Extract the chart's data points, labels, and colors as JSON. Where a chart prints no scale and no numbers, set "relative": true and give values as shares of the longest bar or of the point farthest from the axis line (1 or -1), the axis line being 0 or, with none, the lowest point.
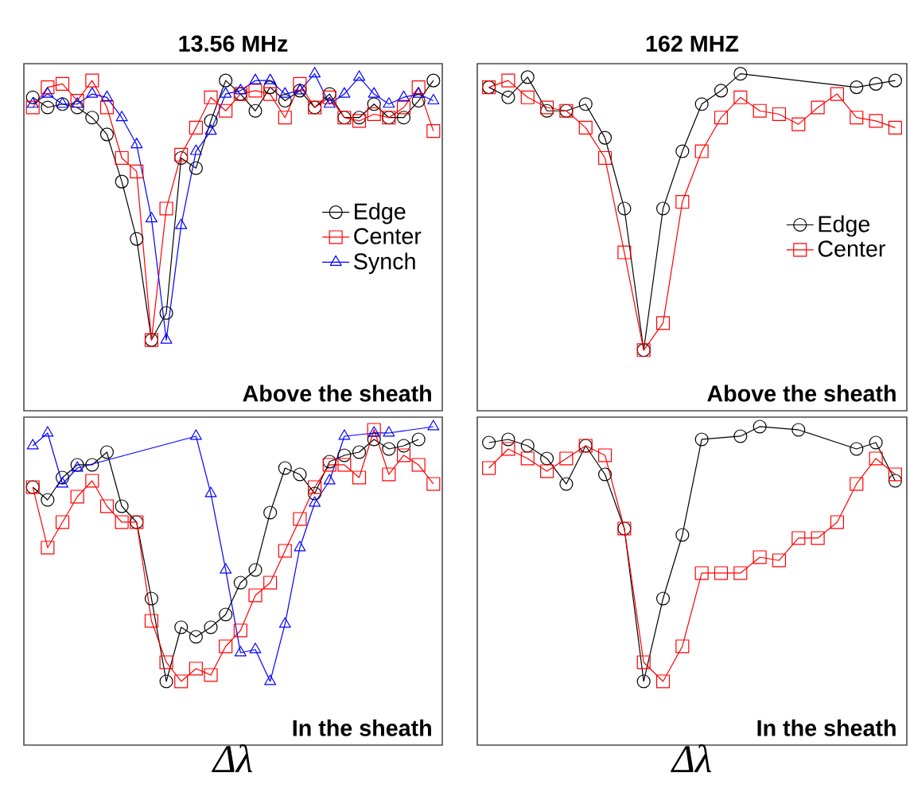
{
  "chart_data": [
    {
      "type": "line",
      "title": "13.56 MHz",
      "relative": true,
      "tick_labels": false,
      "legend": "right",
      "annotations": [
        "Above the sheath"
      ],
      "categories": [
        null,
        null,
        null,
        null,
        null,
        null,
        null,
        null,
        null,
        null,
        null,
        null,
        null,
        null,
        null,
        null,
        null,
        null,
        null,
        null,
        null,
        null,
        null,
        null,
        null,
        null,
        null,
        null
      ],
      "series": [
        {
          "name": "Edge",
          "color": "#000000",
          "marker": "circle",
          "values": [
            0.93,
            0.9,
            0.91,
            0.9,
            0.87,
            0.82,
            0.68,
            0.51,
            0.21,
            0.29,
            0.75,
            0.72,
            0.86,
            0.98,
            0.94,
            0.89,
            0.96,
            0.92,
            0.95,
            0.9,
            0.94,
            0.87,
            0.87,
            0.91,
            0.87,
            0.87,
            0.92,
            0.98
          ]
        },
        {
          "name": "Center",
          "color": "#ff0000",
          "marker": "square",
          "values": [
            0.9,
            0.96,
            0.97,
            0.92,
            0.98,
            0.9,
            0.75,
            0.71,
            0.21,
            0.6,
            0.76,
            0.84,
            0.93,
            0.89,
            0.94,
            0.95,
            0.94,
            0.87,
            0.97,
            0.9,
            0.93,
            0.87,
            0.86,
            0.88,
            0.87,
            0.9,
            0.96,
            0.83
          ]
        },
        {
          "name": "Synch",
          "color": "#0000ff",
          "marker": "triangle",
          "values": [
            0.91,
            0.94,
            0.91,
            0.91,
            0.94,
            0.93,
            0.87,
            0.79,
            0.57,
            0.21,
            0.55,
            0.77,
            0.83,
            0.94,
            0.95,
            0.98,
            0.98,
            0.94,
            0.95,
            1.0,
            0.91,
            0.94,
            0.99,
            0.94,
            0.91,
            0.93,
            0.94,
            0.92
          ]
        }
      ]
    },
    {
      "type": "line",
      "title": "162 MHZ",
      "relative": true,
      "tick_labels": false,
      "legend": "right",
      "annotations": [
        "Above the sheath"
      ],
      "categories": [
        null,
        null,
        null,
        null,
        null,
        null,
        null,
        null,
        null,
        null,
        null,
        null,
        null,
        null,
        null,
        null,
        null,
        null,
        null,
        null,
        null,
        null
      ],
      "series": [
        {
          "name": "Edge",
          "color": "#000000",
          "marker": "circle",
          "values": [
            0.96,
            0.93,
            0.99,
            0.89,
            0.89,
            0.91,
            0.81,
            0.6,
            0.18,
            0.6,
            0.77,
            0.91,
            0.95,
            1.0,
            null,
            null,
            null,
            null,
            null,
            0.96,
            0.97,
            0.98
          ]
        },
        {
          "name": "Center",
          "color": "#ff0000",
          "marker": "square",
          "values": [
            0.96,
            0.98,
            0.93,
            0.9,
            0.89,
            0.84,
            0.75,
            0.47,
            0.18,
            0.26,
            0.62,
            0.77,
            0.87,
            0.93,
            0.89,
            0.88,
            0.85,
            0.9,
            0.94,
            0.87,
            0.86,
            0.84
          ]
        }
      ]
    },
    {
      "type": "line",
      "xlabel": "Δλ",
      "relative": true,
      "tick_labels": false,
      "annotations": [
        "In the sheath"
      ],
      "categories": [
        null,
        null,
        null,
        null,
        null,
        null,
        null,
        null,
        null,
        null,
        null,
        null,
        null,
        null,
        null,
        null,
        null,
        null,
        null,
        null,
        null,
        null,
        null,
        null,
        null,
        null,
        null,
        null
      ],
      "series": [
        {
          "color": "#000000",
          "marker": "circle",
          "values": [
            0.81,
            0.77,
            0.84,
            0.88,
            0.88,
            0.92,
            0.75,
            0.7,
            0.46,
            0.2,
            0.37,
            0.34,
            0.37,
            0.41,
            0.51,
            0.55,
            0.73,
            0.87,
            0.85,
            0.79,
            0.89,
            0.91,
            0.92,
            0.96,
            0.93,
            0.94,
            0.96,
            null
          ]
        },
        {
          "color": "#ff0000",
          "marker": "square",
          "values": [
            0.81,
            0.62,
            0.7,
            0.78,
            0.83,
            0.75,
            0.7,
            0.7,
            0.39,
            0.26,
            0.2,
            0.24,
            0.22,
            0.31,
            0.36,
            0.47,
            0.51,
            0.61,
            0.71,
            0.81,
            0.88,
            0.88,
            0.84,
            0.99,
            0.85,
            0.91,
            0.88,
            0.82
          ]
        },
        {
          "color": "#0000ff",
          "marker": "triangle",
          "values": [
            0.94,
            0.98,
            0.82,
            0.87,
            null,
            null,
            null,
            null,
            null,
            null,
            null,
            0.97,
            0.79,
            0.55,
            0.29,
            0.3,
            0.2,
            0.38,
            0.62,
            0.76,
            0.83,
            0.97,
            null,
            0.98,
            0.98,
            null,
            null,
            1.0
          ]
        }
      ]
    },
    {
      "type": "line",
      "xlabel": "Δλ",
      "relative": true,
      "tick_labels": false,
      "annotations": [
        "In the sheath"
      ],
      "categories": [
        null,
        null,
        null,
        null,
        null,
        null,
        null,
        null,
        null,
        null,
        null,
        null,
        null,
        null,
        null,
        null,
        null,
        null,
        null,
        null,
        null,
        null
      ],
      "series": [
        {
          "color": "#000000",
          "marker": "circle",
          "values": [
            0.95,
            0.96,
            0.94,
            0.9,
            0.82,
            0.94,
            0.85,
            0.68,
            0.2,
            0.46,
            0.66,
            0.96,
            null,
            0.97,
            1.0,
            null,
            0.99,
            null,
            null,
            0.93,
            0.95,
            0.83
          ]
        },
        {
          "color": "#ff0000",
          "marker": "square",
          "values": [
            0.87,
            0.93,
            0.9,
            0.86,
            0.9,
            0.94,
            0.91,
            0.68,
            0.26,
            0.2,
            0.31,
            0.54,
            0.54,
            0.54,
            0.59,
            0.58,
            0.65,
            0.65,
            0.7,
            0.82,
            0.9,
            0.85
          ]
        }
      ]
    }
  ]
}
